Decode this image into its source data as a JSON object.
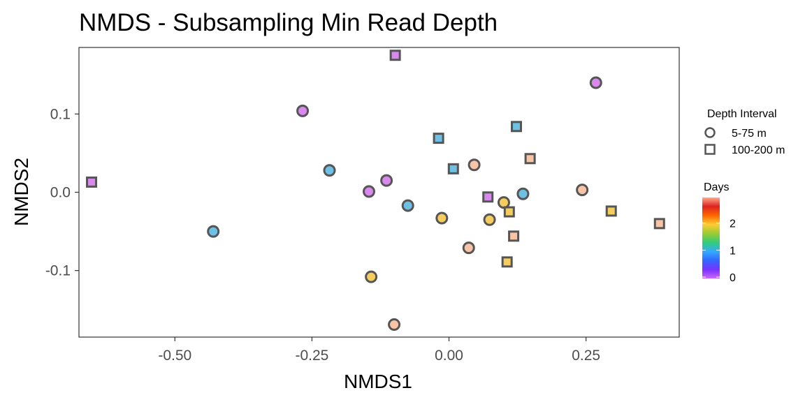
{
  "chart_data": {
    "type": "scatter",
    "title": "NMDS - Subsampling Min Read Depth",
    "xlabel": "NMDS1",
    "ylabel": "NMDS2",
    "xlim": [
      -0.675,
      0.42
    ],
    "ylim": [
      -0.185,
      0.185
    ],
    "x_ticks": [
      -0.5,
      -0.25,
      0.0,
      0.25
    ],
    "x_tick_labels": [
      "-0.50",
      "-0.25",
      "0.00",
      "0.25"
    ],
    "y_ticks": [
      -0.1,
      0.0,
      0.1
    ],
    "y_tick_labels": [
      "-0.1",
      "0.0",
      "0.1"
    ],
    "grid": false,
    "legend_position": "right",
    "shape_legend": {
      "title": "Depth Interval",
      "entries": [
        {
          "label": "5-75 m",
          "shape": "circle"
        },
        {
          "label": "100-200 m",
          "shape": "square"
        }
      ]
    },
    "color_legend": {
      "title": "Days",
      "ticks": [
        0,
        1,
        2
      ],
      "tick_labels": [
        "0",
        "1",
        "2"
      ],
      "range": [
        -0.05,
        2.95
      ],
      "gradient": [
        "#cc66ff",
        "#7733ff",
        "#3366ff",
        "#33aaff",
        "#33cc77",
        "#99cc33",
        "#ffcc33",
        "#ff6600",
        "#dd2222",
        "#ffaa88"
      ]
    },
    "points": [
      {
        "x": -0.652,
        "y": 0.013,
        "shape": "square",
        "days": 0,
        "color": "#d988ee"
      },
      {
        "x": -0.098,
        "y": 0.175,
        "shape": "square",
        "days": 0,
        "color": "#d988ee"
      },
      {
        "x": 0.071,
        "y": -0.006,
        "shape": "square",
        "days": 0,
        "color": "#d988ee"
      },
      {
        "x": -0.267,
        "y": 0.104,
        "shape": "circle",
        "days": 0,
        "color": "#d988ee"
      },
      {
        "x": 0.268,
        "y": 0.14,
        "shape": "circle",
        "days": 0,
        "color": "#d988ee"
      },
      {
        "x": -0.146,
        "y": 0.001,
        "shape": "circle",
        "days": 0,
        "color": "#d988ee"
      },
      {
        "x": -0.114,
        "y": 0.015,
        "shape": "circle",
        "days": 0,
        "color": "#d988ee"
      },
      {
        "x": -0.43,
        "y": -0.05,
        "shape": "circle",
        "days": 1,
        "color": "#6ec1e4"
      },
      {
        "x": -0.218,
        "y": 0.028,
        "shape": "circle",
        "days": 1,
        "color": "#6ec1e4"
      },
      {
        "x": -0.075,
        "y": -0.017,
        "shape": "circle",
        "days": 1,
        "color": "#6ec1e4"
      },
      {
        "x": 0.135,
        "y": -0.002,
        "shape": "circle",
        "days": 1,
        "color": "#6ec1e4"
      },
      {
        "x": -0.019,
        "y": 0.069,
        "shape": "square",
        "days": 1,
        "color": "#6ec1e4"
      },
      {
        "x": 0.008,
        "y": 0.03,
        "shape": "square",
        "days": 1,
        "color": "#6ec1e4"
      },
      {
        "x": 0.123,
        "y": 0.084,
        "shape": "square",
        "days": 1,
        "color": "#6ec1e4"
      },
      {
        "x": -0.013,
        "y": -0.033,
        "shape": "circle",
        "days": 2,
        "color": "#f6cd5c"
      },
      {
        "x": 0.074,
        "y": -0.035,
        "shape": "circle",
        "days": 2,
        "color": "#f6cd5c"
      },
      {
        "x": 0.1,
        "y": -0.013,
        "shape": "circle",
        "days": 2,
        "color": "#f6cd5c"
      },
      {
        "x": -0.142,
        "y": -0.108,
        "shape": "circle",
        "days": 2,
        "color": "#f6cd5c"
      },
      {
        "x": 0.11,
        "y": -0.025,
        "shape": "square",
        "days": 2,
        "color": "#f6cd5c"
      },
      {
        "x": 0.106,
        "y": -0.089,
        "shape": "square",
        "days": 2,
        "color": "#f6cd5c"
      },
      {
        "x": 0.296,
        "y": -0.024,
        "shape": "square",
        "days": 2,
        "color": "#f6cd5c"
      },
      {
        "x": 0.046,
        "y": 0.035,
        "shape": "circle",
        "days": 3,
        "color": "#f9c4a6"
      },
      {
        "x": 0.243,
        "y": 0.003,
        "shape": "circle",
        "days": 3,
        "color": "#f9c4a6"
      },
      {
        "x": 0.036,
        "y": -0.071,
        "shape": "circle",
        "days": 3,
        "color": "#f9c4a6"
      },
      {
        "x": -0.1,
        "y": -0.169,
        "shape": "circle",
        "days": 3,
        "color": "#f9c4a6"
      },
      {
        "x": 0.148,
        "y": 0.043,
        "shape": "square",
        "days": 3,
        "color": "#f9c4a6"
      },
      {
        "x": 0.118,
        "y": -0.056,
        "shape": "square",
        "days": 3,
        "color": "#f9c4a6"
      },
      {
        "x": 0.384,
        "y": -0.04,
        "shape": "square",
        "days": 3,
        "color": "#f9c4a6"
      }
    ]
  }
}
